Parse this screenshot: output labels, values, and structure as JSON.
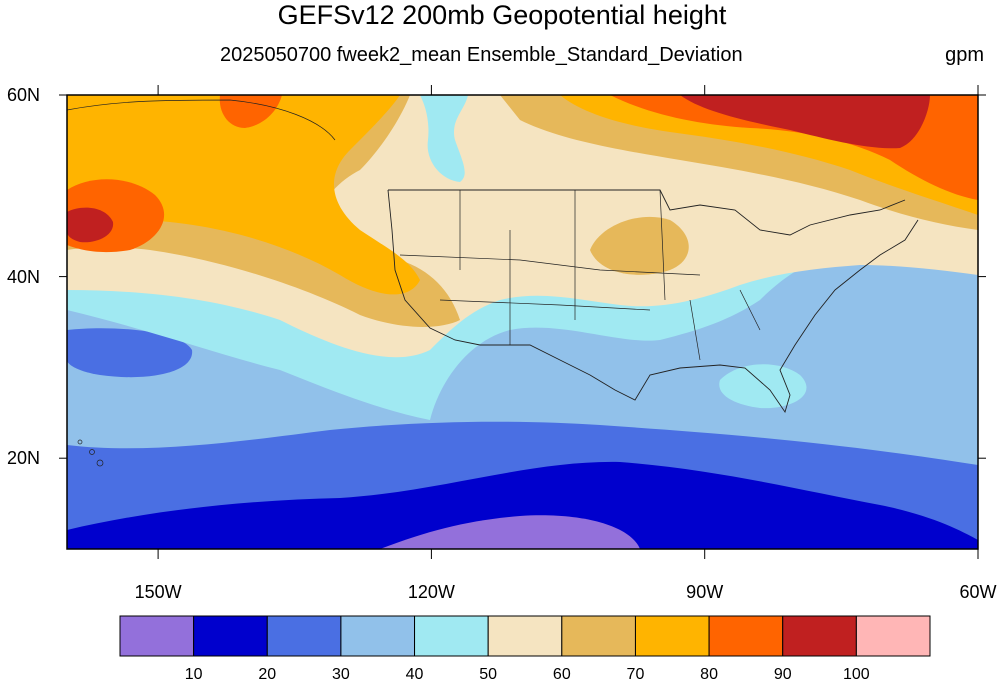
{
  "title": "GEFSv12 200mb Geopotential height",
  "subtitle": "2025050700 fweek2_mean Ensemble_Standard_Deviation",
  "units": "gpm",
  "map": {
    "lon_range": [
      -160,
      -60
    ],
    "lat_range": [
      10,
      60
    ],
    "lat_ticks": [
      {
        "value": 60,
        "label": "60N"
      },
      {
        "value": 40,
        "label": "40N"
      },
      {
        "value": 20,
        "label": "20N"
      }
    ],
    "lon_ticks": [
      {
        "value": -150,
        "label": "150W"
      },
      {
        "value": -120,
        "label": "120W"
      },
      {
        "value": -90,
        "label": "90W"
      },
      {
        "value": -60,
        "label": "60W"
      }
    ]
  },
  "colorbar": {
    "labels": [
      "10",
      "20",
      "30",
      "40",
      "50",
      "60",
      "70",
      "80",
      "90",
      "100"
    ],
    "colors": [
      "#9370db",
      "#0000cd",
      "#4a6fe3",
      "#91c1ea",
      "#a0e9f2",
      "#f5e4c1",
      "#e6b85a",
      "#ffb400",
      "#ff6400",
      "#c02020",
      "#ffb6b6"
    ]
  }
}
